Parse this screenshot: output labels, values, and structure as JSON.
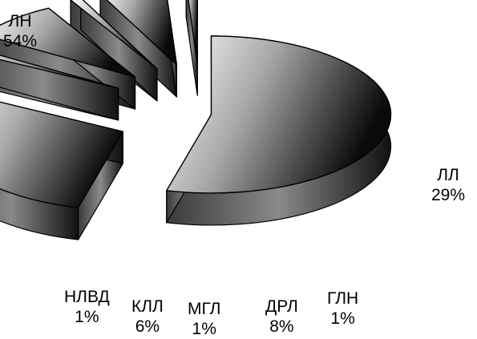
{
  "chart_data": {
    "type": "pie",
    "title": "",
    "style": "3d-exploded",
    "slices": [
      {
        "name": "ЛН",
        "value": 54,
        "value_label": "54%"
      },
      {
        "name": "ЛЛ",
        "value": 29,
        "value_label": "29%"
      },
      {
        "name": "ГЛН",
        "value": 1,
        "value_label": "1%"
      },
      {
        "name": "ДРЛ",
        "value": 8,
        "value_label": "8%"
      },
      {
        "name": "МГЛ",
        "value": 1,
        "value_label": "1%"
      },
      {
        "name": "КЛЛ",
        "value": 6,
        "value_label": "6%"
      },
      {
        "name": "НЛВД",
        "value": 1,
        "value_label": "1%"
      }
    ],
    "legend": "none",
    "data_labels": "outside"
  },
  "colors": {
    "gradient_light": "#ffffff",
    "gradient_mid": "#9a9a9a",
    "gradient_dark": "#0a0a0a",
    "outline": "#000000"
  }
}
